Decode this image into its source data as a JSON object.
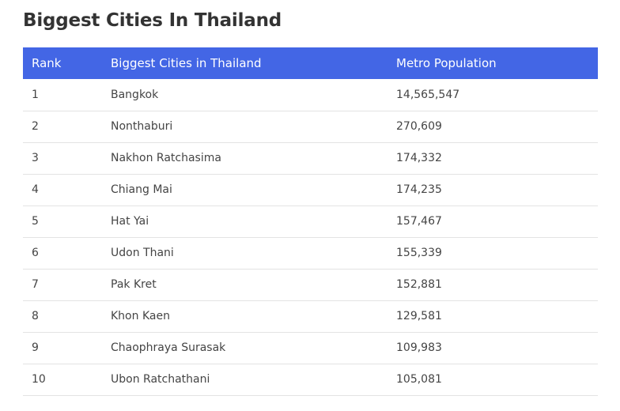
{
  "page": {
    "title": "Biggest Cities In Thailand"
  },
  "colors": {
    "header_bg": "#4366e5",
    "header_text": "#ffffff",
    "row_border": "#e3e3e3"
  },
  "table": {
    "headers": [
      "Rank",
      "Biggest Cities in Thailand",
      "Metro Population"
    ],
    "rows": [
      {
        "rank": "1",
        "city": "Bangkok",
        "population": "14,565,547"
      },
      {
        "rank": "2",
        "city": "Nonthaburi",
        "population": "270,609"
      },
      {
        "rank": "3",
        "city": "Nakhon Ratchasima",
        "population": "174,332"
      },
      {
        "rank": "4",
        "city": "Chiang Mai",
        "population": "174,235"
      },
      {
        "rank": "5",
        "city": "Hat Yai",
        "population": "157,467"
      },
      {
        "rank": "6",
        "city": "Udon Thani",
        "population": "155,339"
      },
      {
        "rank": "7",
        "city": "Pak Kret",
        "population": "152,881"
      },
      {
        "rank": "8",
        "city": "Khon Kaen",
        "population": "129,581"
      },
      {
        "rank": "9",
        "city": "Chaophraya Surasak",
        "population": "109,983"
      },
      {
        "rank": "10",
        "city": "Ubon Ratchathani",
        "population": "105,081"
      }
    ]
  }
}
